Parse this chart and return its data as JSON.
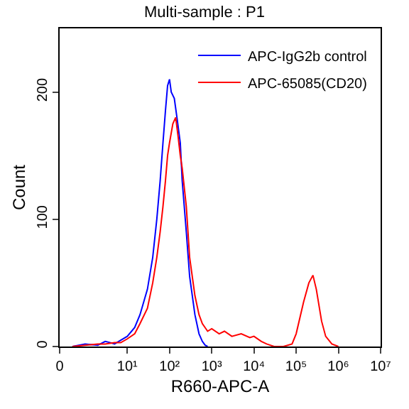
{
  "chart_data": {
    "type": "line",
    "title": "Multi-sample : P1",
    "xlabel": "R660-APC-A",
    "ylabel": "Count",
    "log": "x",
    "xlim": [
      0.25,
      10000000
    ],
    "xticks": [
      {
        "value": 0.25,
        "label": "0"
      },
      {
        "value": 10,
        "label": "10¹"
      },
      {
        "value": 100,
        "label": "10²"
      },
      {
        "value": 1000,
        "label": "10³"
      },
      {
        "value": 10000,
        "label": "10⁴"
      },
      {
        "value": 100000,
        "label": "10⁵"
      },
      {
        "value": 1000000,
        "label": "10⁶"
      },
      {
        "value": 10000000,
        "label": "10⁷"
      }
    ],
    "ylim": [
      0,
      250
    ],
    "yticks": [
      0,
      100,
      200
    ],
    "grid": false,
    "legend": "top right",
    "series": [
      {
        "name": "APC-IgG2b control",
        "color": "#0000ff",
        "x": [
          0.5,
          1,
          2,
          3,
          4,
          5,
          7,
          10,
          15,
          20,
          30,
          40,
          50,
          60,
          70,
          80,
          90,
          100,
          110,
          130,
          150,
          180,
          200,
          250,
          300,
          400,
          500,
          600,
          700,
          800
        ],
        "values": [
          0,
          2,
          1,
          4,
          3,
          2,
          5,
          8,
          15,
          25,
          45,
          70,
          100,
          130,
          160,
          185,
          205,
          210,
          200,
          195,
          180,
          160,
          130,
          90,
          55,
          25,
          10,
          4,
          1,
          0
        ]
      },
      {
        "name": "APC-65085(CD20)",
        "color": "#ff0000",
        "x": [
          0.5,
          1,
          2,
          3,
          5,
          7,
          10,
          15,
          20,
          30,
          40,
          50,
          60,
          70,
          80,
          90,
          100,
          120,
          140,
          160,
          180,
          200,
          250,
          300,
          400,
          500,
          600,
          800,
          1000,
          1500,
          2000,
          3000,
          5000,
          8000,
          10000,
          15000,
          20000,
          30000,
          50000,
          80000,
          100000,
          150000,
          200000,
          250000,
          300000,
          400000,
          500000,
          700000,
          1000000
        ],
        "values": [
          0,
          1,
          2,
          2,
          3,
          3,
          6,
          10,
          18,
          30,
          50,
          70,
          90,
          110,
          130,
          150,
          160,
          175,
          180,
          165,
          150,
          140,
          110,
          70,
          40,
          25,
          18,
          12,
          14,
          10,
          12,
          8,
          10,
          7,
          8,
          4,
          2,
          0,
          0,
          2,
          10,
          35,
          50,
          56,
          45,
          20,
          8,
          2,
          0
        ]
      }
    ]
  }
}
